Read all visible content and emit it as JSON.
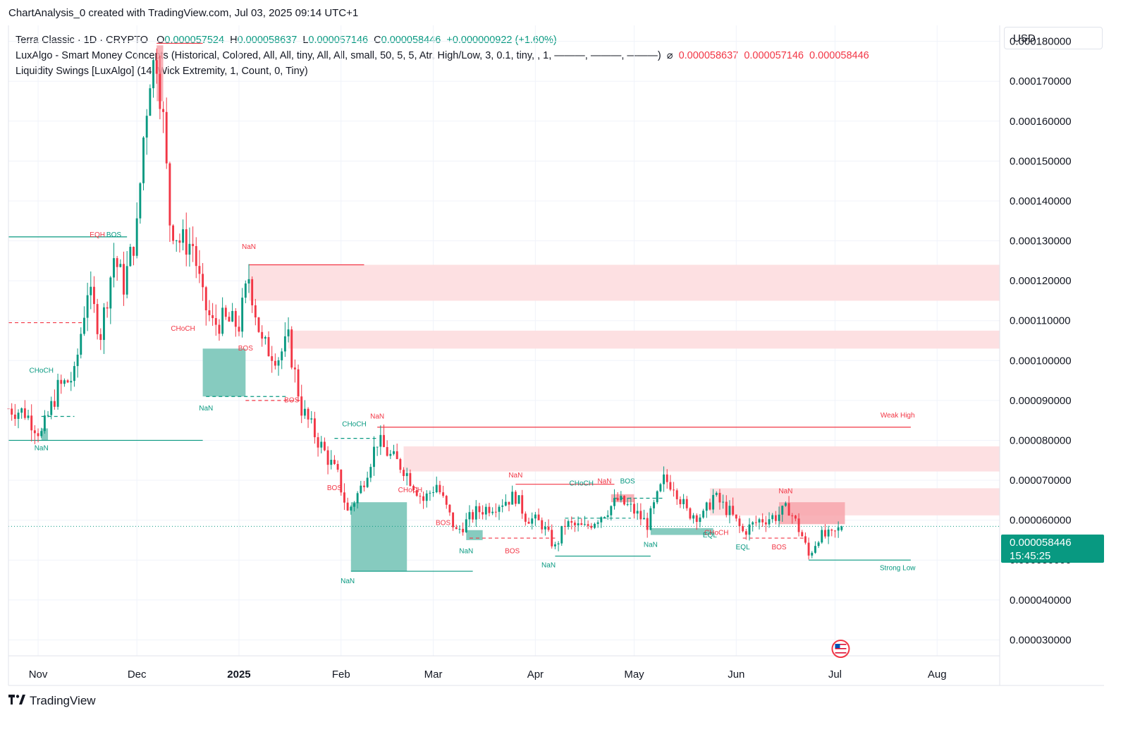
{
  "header": {
    "credit": "ChartAnalysis_0 created with TradingView.com, Jul 03, 2025 09:14 UTC+1"
  },
  "legend": {
    "symbol": "Terra Classic · 1D · CRYPTO",
    "o_label": "O",
    "o_value": "0.000057524",
    "h_label": "H",
    "h_value": "0.000058637",
    "l_label": "L",
    "l_value": "0.000057146",
    "c_label": "C",
    "c_value": "0.000058446",
    "change": "+0.000000922 (+1.60%)",
    "indicator1": "LuxAlgo - Smart Money Concepts (Historical, Colored, All, All, tiny, All, All, small, 50, 5, 5, Atr, High/Low, 3, 0.1, tiny, , 1, ———, ———, ———)",
    "indicator1_symbol": "⌀",
    "indicator1_values": [
      "0.000058637",
      "0.000057146",
      "0.000058446"
    ],
    "indicator2": "Liquidity Swings [LuxAlgo] (14, Wick Extremity, 1, Count, 0, Tiny)"
  },
  "currency": "USD",
  "last_price": {
    "value": "0.000058446",
    "countdown": "15:45:25"
  },
  "colors": {
    "up": "#089981",
    "down": "#f23645",
    "zone_red": "#fde0e2",
    "zone_green": "#7fc8bc"
  },
  "footer": {
    "brand": "TradingView",
    "icon": "tradingview-logo-icon"
  },
  "chart_data": {
    "type": "candlestick",
    "symbol": "Terra Classic",
    "interval": "1D",
    "ylim": [
      2.6e-05,
      0.000184
    ],
    "y_ticks": [
      "0.000180000",
      "0.000170000",
      "0.000160000",
      "0.000150000",
      "0.000140000",
      "0.000130000",
      "0.000120000",
      "0.000110000",
      "0.000100000",
      "0.000090000",
      "0.000080000",
      "0.000070000",
      "0.000060000",
      "0.000050000",
      "0.000040000",
      "0.000030000"
    ],
    "x_ticks": [
      {
        "label": "Nov",
        "date": "2024-11-01"
      },
      {
        "label": "Dec",
        "date": "2024-12-01"
      },
      {
        "label": "2025",
        "date": "2025-01-01"
      },
      {
        "label": "Feb",
        "date": "2025-02-01"
      },
      {
        "label": "Mar",
        "date": "2025-03-01"
      },
      {
        "label": "Apr",
        "date": "2025-04-01"
      },
      {
        "label": "May",
        "date": "2025-05-01"
      },
      {
        "label": "Jun",
        "date": "2025-06-01"
      },
      {
        "label": "Jul",
        "date": "2025-07-01"
      },
      {
        "label": "Aug",
        "date": "2025-08-01"
      }
    ],
    "x_range": [
      "2024-10-23",
      "2025-08-20"
    ],
    "price_anchors": [
      [
        "2024-10-23",
        8.8e-05
      ],
      [
        "2024-10-28",
        8.7e-05
      ],
      [
        "2024-11-02",
        8.15e-05
      ],
      [
        "2024-11-07",
        9.3e-05
      ],
      [
        "2024-11-12",
        9.6e-05
      ],
      [
        "2024-11-16",
        0.000118
      ],
      [
        "2024-11-20",
        0.000107
      ],
      [
        "2024-11-24",
        0.000126
      ],
      [
        "2024-11-27",
        0.000119
      ],
      [
        "2024-12-01",
        0.000133
      ],
      [
        "2024-12-03",
        0.000156
      ],
      [
        "2024-12-05",
        0.000172
      ],
      [
        "2024-12-07",
        0.000176
      ],
      [
        "2024-12-09",
        0.00016
      ],
      [
        "2024-12-11",
        0.000135
      ],
      [
        "2024-12-14",
        0.00013
      ],
      [
        "2024-12-18",
        0.000129
      ],
      [
        "2024-12-21",
        0.000115
      ],
      [
        "2024-12-24",
        0.000109
      ],
      [
        "2024-12-27",
        0.00011
      ],
      [
        "2025-01-01",
        0.000109
      ],
      [
        "2025-01-04",
        0.000121
      ],
      [
        "2025-01-08",
        0.000104
      ],
      [
        "2025-01-13",
        0.000101
      ],
      [
        "2025-01-16",
        0.000105
      ],
      [
        "2025-01-20",
        8.8e-05
      ],
      [
        "2025-01-25",
        8e-05
      ],
      [
        "2025-01-31",
        7.1e-05
      ],
      [
        "2025-02-03",
        6.2e-05
      ],
      [
        "2025-02-07",
        6.8e-05
      ],
      [
        "2025-02-12",
        8e-05
      ],
      [
        "2025-02-16",
        7.6e-05
      ],
      [
        "2025-02-20",
        7.3e-05
      ],
      [
        "2025-02-26",
        6.5e-05
      ],
      [
        "2025-03-02",
        6.9e-05
      ],
      [
        "2025-03-08",
        5.7e-05
      ],
      [
        "2025-03-14",
        6.2e-05
      ],
      [
        "2025-03-20",
        6.4e-05
      ],
      [
        "2025-03-26",
        6.6e-05
      ],
      [
        "2025-03-29",
        6.1e-05
      ],
      [
        "2025-04-03",
        5.9e-05
      ],
      [
        "2025-04-07",
        5.3e-05
      ],
      [
        "2025-04-10",
        5.9e-05
      ],
      [
        "2025-04-16",
        5.8e-05
      ],
      [
        "2025-04-22",
        6.2e-05
      ],
      [
        "2025-04-26",
        6.5e-05
      ],
      [
        "2025-04-30",
        6.3e-05
      ],
      [
        "2025-05-05",
        5.9e-05
      ],
      [
        "2025-05-10",
        7e-05
      ],
      [
        "2025-05-13",
        6.9e-05
      ],
      [
        "2025-05-17",
        6.2e-05
      ],
      [
        "2025-05-22",
        6.1e-05
      ],
      [
        "2025-05-25",
        6.6e-05
      ],
      [
        "2025-05-30",
        6.2e-05
      ],
      [
        "2025-06-03",
        5.7e-05
      ],
      [
        "2025-06-08",
        6e-05
      ],
      [
        "2025-06-13",
        6.1e-05
      ],
      [
        "2025-06-17",
        6.3e-05
      ],
      [
        "2025-06-21",
        5.6e-05
      ],
      [
        "2025-06-23",
        5.1e-05
      ],
      [
        "2025-06-26",
        5.6e-05
      ],
      [
        "2025-06-30",
        5.6e-05
      ],
      [
        "2025-07-03",
        5.84e-05
      ]
    ],
    "zones": [
      {
        "kind": "supply",
        "from": "2025-01-04",
        "to": "2025-08-20",
        "top": 0.000124,
        "bottom": 0.000115
      },
      {
        "kind": "supply",
        "from": "2025-01-16",
        "to": "2025-08-20",
        "top": 0.0001075,
        "bottom": 0.000103
      },
      {
        "kind": "supply",
        "from": "2025-02-20",
        "to": "2025-08-20",
        "top": 7.85e-05,
        "bottom": 7.22e-05
      },
      {
        "kind": "supply",
        "from": "2025-05-24",
        "to": "2025-08-20",
        "top": 6.8e-05,
        "bottom": 6.12e-05
      },
      {
        "kind": "supply_strong",
        "from": "2025-06-14",
        "to": "2025-07-04",
        "top": 6.45e-05,
        "bottom": 5.9e-05
      },
      {
        "kind": "supply_strong",
        "from": "2024-12-07",
        "to": "2024-12-09",
        "top": 0.000179,
        "bottom": 0.000165
      },
      {
        "kind": "supply_strong",
        "from": "2025-04-24",
        "to": "2025-05-01",
        "top": 6.65e-05,
        "bottom": 6.45e-05
      },
      {
        "kind": "demand",
        "from": "2024-12-21",
        "to": "2025-01-03",
        "top": 0.000103,
        "bottom": 9.1e-05
      },
      {
        "kind": "demand",
        "from": "2025-02-04",
        "to": "2025-02-21",
        "top": 6.45e-05,
        "bottom": 4.72e-05
      },
      {
        "kind": "demand",
        "from": "2025-03-11",
        "to": "2025-03-16",
        "top": 5.75e-05,
        "bottom": 5.5e-05
      },
      {
        "kind": "demand",
        "from": "2025-05-06",
        "to": "2025-05-25",
        "top": 5.8e-05,
        "bottom": 5.63e-05
      },
      {
        "kind": "demand",
        "from": "2024-11-02",
        "to": "2024-11-04",
        "top": 8.3e-05,
        "bottom": 8e-05
      }
    ],
    "levels": [
      {
        "color": "up",
        "style": "solid",
        "from": "2024-10-23",
        "to": "2024-11-28",
        "value": 0.000131
      },
      {
        "color": "up",
        "style": "solid",
        "from": "2024-10-23",
        "to": "2024-12-21",
        "value": 8e-05
      },
      {
        "color": "up",
        "style": "solid",
        "from": "2025-02-04",
        "to": "2025-03-13",
        "value": 4.72e-05
      },
      {
        "color": "up",
        "style": "solid",
        "from": "2025-04-07",
        "to": "2025-05-06",
        "value": 5.1e-05
      },
      {
        "color": "up",
        "style": "solid",
        "from": "2025-06-23",
        "to": "2025-07-24",
        "value": 5e-05
      },
      {
        "color": "down",
        "style": "solid",
        "from": "2025-01-04",
        "to": "2025-02-08",
        "value": 0.000124
      },
      {
        "color": "down",
        "style": "solid",
        "from": "2025-02-12",
        "to": "2025-07-24",
        "value": 8.33e-05
      },
      {
        "color": "down",
        "style": "solid",
        "from": "2025-03-26",
        "to": "2025-04-25",
        "value": 6.9e-05
      },
      {
        "color": "down",
        "style": "solid",
        "from": "2024-12-07",
        "to": "2024-12-21",
        "value": 0.0001795
      },
      {
        "color": "down",
        "style": "dashed",
        "from": "2024-10-23",
        "to": "2024-11-15",
        "value": 0.0001095
      },
      {
        "color": "down",
        "style": "dashed",
        "from": "2025-01-03",
        "to": "2025-01-20",
        "value": 9e-05
      },
      {
        "color": "down",
        "style": "dashed",
        "from": "2025-03-12",
        "to": "2025-04-07",
        "value": 5.55e-05
      },
      {
        "color": "down",
        "style": "dashed",
        "from": "2025-06-03",
        "to": "2025-06-22",
        "value": 5.55e-05
      },
      {
        "color": "up",
        "style": "dashed",
        "from": "2024-11-02",
        "to": "2024-11-12",
        "value": 8.6e-05
      },
      {
        "color": "up",
        "style": "dashed",
        "from": "2024-12-22",
        "to": "2025-01-16",
        "value": 9.1e-05
      },
      {
        "color": "up",
        "style": "dashed",
        "from": "2025-01-30",
        "to": "2025-02-12",
        "value": 8.05e-05
      },
      {
        "color": "up",
        "style": "dashed",
        "from": "2025-04-10",
        "to": "2025-04-30",
        "value": 6.05e-05
      },
      {
        "color": "up",
        "style": "dashed",
        "from": "2025-04-25",
        "to": "2025-05-10",
        "value": 6.55e-05
      }
    ],
    "annotations": [
      {
        "text": "EQH",
        "date": "2024-11-19",
        "value": 0.000131,
        "color": "down"
      },
      {
        "text": "BOS",
        "date": "2024-11-24",
        "value": 0.000131,
        "color": "up"
      },
      {
        "text": "CHoCH",
        "date": "2024-11-02",
        "value": 9.7e-05,
        "color": "up"
      },
      {
        "text": "NaN",
        "date": "2024-11-02",
        "value": 7.75e-05,
        "color": "up"
      },
      {
        "text": "CHoCH",
        "date": "2024-12-15",
        "value": 0.0001075,
        "color": "down"
      },
      {
        "text": "NaN",
        "date": "2025-01-04",
        "value": 0.000128,
        "color": "down"
      },
      {
        "text": "BOS",
        "date": "2025-01-03",
        "value": 0.0001025,
        "color": "down"
      },
      {
        "text": "NaN",
        "date": "2024-12-22",
        "value": 8.75e-05,
        "color": "up"
      },
      {
        "text": "BOS",
        "date": "2025-01-17",
        "value": 8.95e-05,
        "color": "down"
      },
      {
        "text": "CHoCH",
        "date": "2025-02-05",
        "value": 8.35e-05,
        "color": "up"
      },
      {
        "text": "NaN",
        "date": "2025-02-12",
        "value": 8.55e-05,
        "color": "down"
      },
      {
        "text": "BOS",
        "date": "2025-01-30",
        "value": 6.75e-05,
        "color": "down"
      },
      {
        "text": "NaN",
        "date": "2025-02-03",
        "value": 4.42e-05,
        "color": "up"
      },
      {
        "text": "CHoCH",
        "date": "2025-02-22",
        "value": 6.7e-05,
        "color": "down"
      },
      {
        "text": "BOS",
        "date": "2025-03-04",
        "value": 5.88e-05,
        "color": "down"
      },
      {
        "text": "NaN",
        "date": "2025-03-11",
        "value": 5.17e-05,
        "color": "up"
      },
      {
        "text": "BOS",
        "date": "2025-03-25",
        "value": 5.17e-05,
        "color": "down"
      },
      {
        "text": "NaN",
        "date": "2025-03-26",
        "value": 7.07e-05,
        "color": "down"
      },
      {
        "text": "CHoCH",
        "date": "2025-04-15",
        "value": 6.87e-05,
        "color": "up"
      },
      {
        "text": "NaN",
        "date": "2025-04-05",
        "value": 4.82e-05,
        "color": "up"
      },
      {
        "text": "NaN",
        "date": "2025-04-22",
        "value": 6.92e-05,
        "color": "down"
      },
      {
        "text": "BOS",
        "date": "2025-04-29",
        "value": 6.92e-05,
        "color": "up"
      },
      {
        "text": "NaN",
        "date": "2025-05-06",
        "value": 5.33e-05,
        "color": "up"
      },
      {
        "text": "CHoCH",
        "date": "2025-05-26",
        "value": 5.63e-05,
        "color": "down"
      },
      {
        "text": "EQL",
        "date": "2025-05-24",
        "value": 5.57e-05,
        "color": "up"
      },
      {
        "text": "EQL",
        "date": "2025-06-03",
        "value": 5.27e-05,
        "color": "up"
      },
      {
        "text": "BOS",
        "date": "2025-06-14",
        "value": 5.27e-05,
        "color": "down"
      },
      {
        "text": "NaN",
        "date": "2025-06-16",
        "value": 6.67e-05,
        "color": "down"
      },
      {
        "text": "Weak High",
        "date": "2025-07-20",
        "value": 8.57e-05,
        "color": "down"
      },
      {
        "text": "Strong Low",
        "date": "2025-07-20",
        "value": 4.75e-05,
        "color": "up"
      }
    ]
  }
}
